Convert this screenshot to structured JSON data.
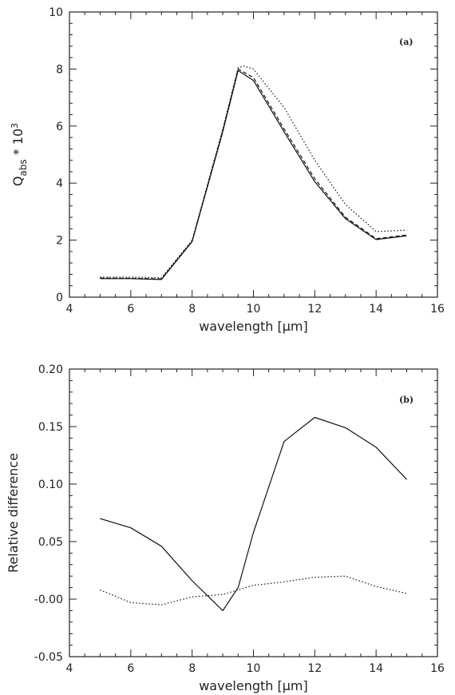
{
  "chart_data": [
    {
      "type": "line",
      "panel_label": "(a)",
      "xlabel": "wavelength [μm]",
      "ylabel": {
        "base": "Q",
        "sub": "abs",
        "mid": " * 10",
        "sup": "3"
      },
      "xlim": [
        4,
        16
      ],
      "ylim": [
        0,
        10
      ],
      "xticks": [
        4,
        6,
        8,
        10,
        12,
        14,
        16
      ],
      "yticks": [
        0,
        2,
        4,
        6,
        8,
        10
      ],
      "series": [
        {
          "style": "solid",
          "x": [
            5,
            6,
            7,
            8,
            9,
            9.5,
            10,
            11,
            12,
            13,
            14,
            15
          ],
          "y": [
            0.65,
            0.65,
            0.62,
            1.95,
            5.8,
            7.95,
            7.6,
            5.8,
            4.05,
            2.75,
            2.02,
            2.15
          ]
        },
        {
          "style": "dashed",
          "x": [
            5,
            6,
            7,
            8,
            9,
            9.5,
            10,
            11,
            12,
            13,
            14,
            15
          ],
          "y": [
            0.67,
            0.66,
            0.64,
            1.97,
            5.85,
            8.0,
            7.7,
            5.9,
            4.15,
            2.8,
            2.05,
            2.18
          ]
        },
        {
          "style": "dotted",
          "x": [
            5,
            6,
            7,
            8,
            9,
            9.5,
            9.7,
            10,
            11,
            12,
            13,
            14,
            15
          ],
          "y": [
            0.7,
            0.7,
            0.68,
            2.0,
            5.9,
            8.05,
            8.1,
            8.0,
            6.65,
            4.8,
            3.25,
            2.3,
            2.35
          ]
        }
      ]
    },
    {
      "type": "line",
      "panel_label": "(b)",
      "xlabel": "wavelength [μm]",
      "ylabel": "Relative difference",
      "xlim": [
        4,
        16
      ],
      "ylim": [
        -0.05,
        0.2
      ],
      "xticks": [
        4,
        6,
        8,
        10,
        12,
        14,
        16
      ],
      "yticks": [
        -0.05,
        0.0,
        0.05,
        0.1,
        0.15,
        0.2
      ],
      "ytick_labels": [
        "-0.05",
        "-0.00",
        "0.05",
        "0.10",
        "0.15",
        "0.20"
      ],
      "series": [
        {
          "style": "solid",
          "x": [
            5,
            6,
            7,
            8,
            9,
            9.5,
            10,
            11,
            12,
            13,
            14,
            15
          ],
          "y": [
            0.07,
            0.062,
            0.046,
            0.016,
            -0.01,
            0.01,
            0.058,
            0.137,
            0.158,
            0.149,
            0.132,
            0.104
          ]
        },
        {
          "style": "dotted",
          "x": [
            5,
            6,
            7,
            8,
            9,
            10,
            11,
            12,
            13,
            14,
            15
          ],
          "y": [
            0.008,
            -0.003,
            -0.005,
            0.002,
            0.004,
            0.012,
            0.015,
            0.019,
            0.02,
            0.011,
            0.005
          ]
        }
      ]
    }
  ]
}
